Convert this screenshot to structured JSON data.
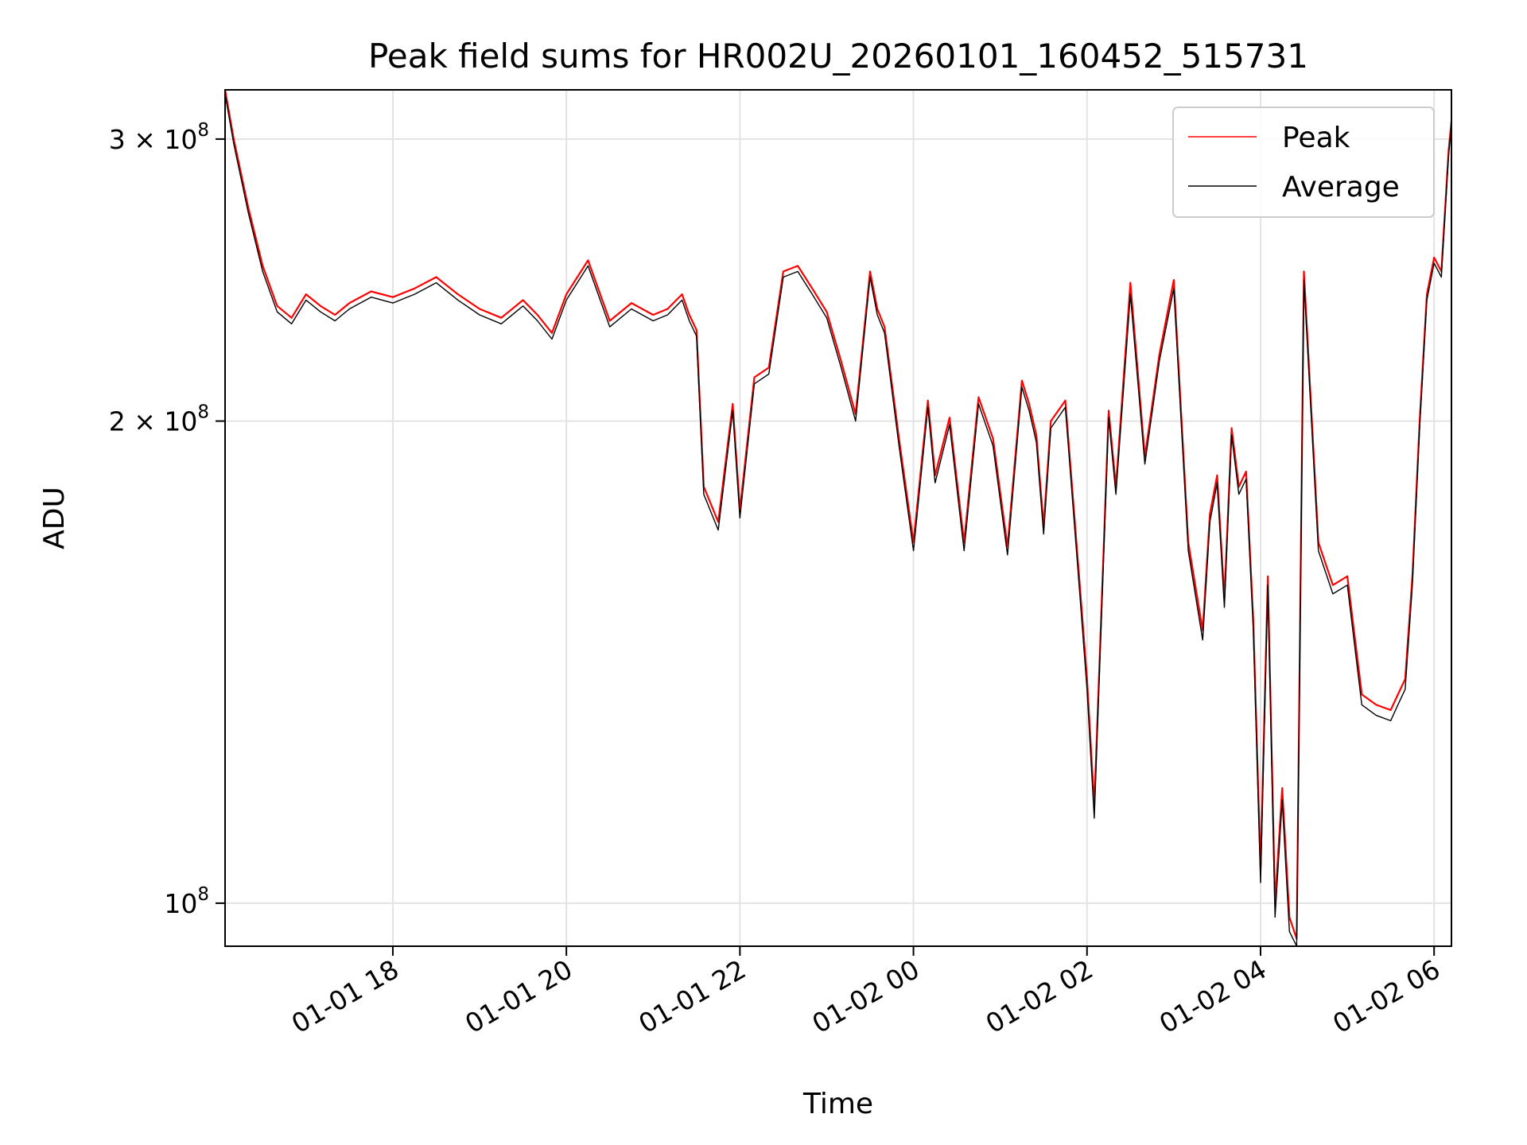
{
  "chart_data": {
    "type": "line",
    "title": "Peak field sums for HR002U_20260101_160452_515731",
    "xlabel": "Time",
    "ylabel": "ADU",
    "yscale": "log",
    "xlim": [
      "2026-01-01 16:04",
      "2026-01-02 06:12"
    ],
    "ylim": [
      94000000,
      322000000
    ],
    "grid": true,
    "legend_position": "upper right",
    "x_ticks": [
      {
        "value": "2026-01-01 18:00",
        "label": "01-01 18"
      },
      {
        "value": "2026-01-01 20:00",
        "label": "01-01 20"
      },
      {
        "value": "2026-01-01 22:00",
        "label": "01-01 22"
      },
      {
        "value": "2026-01-02 00:00",
        "label": "01-02 00"
      },
      {
        "value": "2026-01-02 02:00",
        "label": "01-02 02"
      },
      {
        "value": "2026-01-02 04:00",
        "label": "01-02 04"
      },
      {
        "value": "2026-01-02 06:00",
        "label": "01-02 06"
      }
    ],
    "y_ticks": [
      {
        "value": 100000000,
        "mantissa": "",
        "base": "10",
        "exp": "8"
      },
      {
        "value": 200000000,
        "mantissa": "2",
        "base": "10",
        "exp": "8"
      },
      {
        "value": 300000000,
        "mantissa": "3",
        "base": "10",
        "exp": "8"
      }
    ],
    "series": [
      {
        "name": "Peak",
        "color": "#ff0000",
        "x": [
          "2026-01-01 16:04",
          "2026-01-01 16:10",
          "2026-01-01 16:20",
          "2026-01-01 16:30",
          "2026-01-01 16:40",
          "2026-01-01 16:50",
          "2026-01-01 17:00",
          "2026-01-01 17:10",
          "2026-01-01 17:20",
          "2026-01-01 17:30",
          "2026-01-01 17:45",
          "2026-01-01 18:00",
          "2026-01-01 18:15",
          "2026-01-01 18:30",
          "2026-01-01 18:45",
          "2026-01-01 19:00",
          "2026-01-01 19:15",
          "2026-01-01 19:30",
          "2026-01-01 19:40",
          "2026-01-01 19:50",
          "2026-01-01 20:00",
          "2026-01-01 20:15",
          "2026-01-01 20:30",
          "2026-01-01 20:45",
          "2026-01-01 21:00",
          "2026-01-01 21:10",
          "2026-01-01 21:20",
          "2026-01-01 21:25",
          "2026-01-01 21:30",
          "2026-01-01 21:35",
          "2026-01-01 21:45",
          "2026-01-01 21:55",
          "2026-01-01 22:00",
          "2026-01-01 22:10",
          "2026-01-01 22:20",
          "2026-01-01 22:30",
          "2026-01-01 22:40",
          "2026-01-01 22:50",
          "2026-01-01 23:00",
          "2026-01-01 23:10",
          "2026-01-01 23:20",
          "2026-01-01 23:30",
          "2026-01-01 23:35",
          "2026-01-01 23:40",
          "2026-01-01 23:50",
          "2026-01-02 00:00",
          "2026-01-02 00:10",
          "2026-01-02 00:15",
          "2026-01-02 00:25",
          "2026-01-02 00:35",
          "2026-01-02 00:45",
          "2026-01-02 00:55",
          "2026-01-02 01:05",
          "2026-01-02 01:15",
          "2026-01-02 01:20",
          "2026-01-02 01:25",
          "2026-01-02 01:30",
          "2026-01-02 01:35",
          "2026-01-02 01:45",
          "2026-01-02 01:55",
          "2026-01-02 02:00",
          "2026-01-02 02:05",
          "2026-01-02 02:15",
          "2026-01-02 02:20",
          "2026-01-02 02:30",
          "2026-01-02 02:40",
          "2026-01-02 02:50",
          "2026-01-02 03:00",
          "2026-01-02 03:10",
          "2026-01-02 03:20",
          "2026-01-02 03:25",
          "2026-01-02 03:30",
          "2026-01-02 03:35",
          "2026-01-02 03:40",
          "2026-01-02 03:45",
          "2026-01-02 03:50",
          "2026-01-02 03:55",
          "2026-01-02 04:00",
          "2026-01-02 04:05",
          "2026-01-02 04:10",
          "2026-01-02 04:15",
          "2026-01-02 04:20",
          "2026-01-02 04:25",
          "2026-01-02 04:30",
          "2026-01-02 04:40",
          "2026-01-02 04:50",
          "2026-01-02 05:00",
          "2026-01-02 05:10",
          "2026-01-02 05:20",
          "2026-01-02 05:30",
          "2026-01-02 05:35",
          "2026-01-02 05:40",
          "2026-01-02 05:45",
          "2026-01-02 05:50",
          "2026-01-02 05:55",
          "2026-01-02 06:00",
          "2026-01-02 06:05",
          "2026-01-02 06:10",
          "2026-01-02 06:12"
        ],
        "y": [
          322000000,
          300000000,
          272000000,
          250000000,
          236000000,
          232000000,
          240000000,
          236000000,
          233000000,
          237000000,
          241000000,
          239000000,
          242000000,
          246000000,
          240000000,
          235000000,
          232000000,
          238000000,
          233000000,
          227000000,
          240000000,
          252000000,
          231000000,
          237000000,
          233000000,
          235000000,
          240000000,
          233000000,
          228000000,
          182000000,
          173000000,
          205000000,
          176000000,
          213000000,
          216000000,
          248000000,
          250000000,
          242000000,
          234000000,
          218000000,
          202000000,
          248000000,
          235000000,
          229000000,
          195000000,
          168000000,
          206000000,
          185000000,
          201000000,
          168000000,
          207000000,
          195000000,
          167000000,
          212000000,
          205000000,
          196000000,
          172000000,
          200000000,
          206000000,
          158000000,
          138000000,
          115000000,
          203000000,
          182000000,
          244000000,
          190000000,
          220000000,
          245000000,
          168000000,
          148000000,
          175000000,
          185000000,
          155000000,
          198000000,
          182000000,
          186000000,
          150000000,
          105000000,
          160000000,
          100000000,
          118000000,
          98000000,
          95000000,
          248000000,
          168000000,
          158000000,
          160000000,
          135000000,
          133000000,
          132000000,
          135000000,
          138000000,
          160000000,
          200000000,
          240000000,
          253000000,
          248000000,
          295000000,
          308000000
        ]
      },
      {
        "name": "Average",
        "color": "#000000",
        "x": [
          "2026-01-01 16:04",
          "2026-01-01 16:10",
          "2026-01-01 16:20",
          "2026-01-01 16:30",
          "2026-01-01 16:40",
          "2026-01-01 16:50",
          "2026-01-01 17:00",
          "2026-01-01 17:10",
          "2026-01-01 17:20",
          "2026-01-01 17:30",
          "2026-01-01 17:45",
          "2026-01-01 18:00",
          "2026-01-01 18:15",
          "2026-01-01 18:30",
          "2026-01-01 18:45",
          "2026-01-01 19:00",
          "2026-01-01 19:15",
          "2026-01-01 19:30",
          "2026-01-01 19:40",
          "2026-01-01 19:50",
          "2026-01-01 20:00",
          "2026-01-01 20:15",
          "2026-01-01 20:30",
          "2026-01-01 20:45",
          "2026-01-01 21:00",
          "2026-01-01 21:10",
          "2026-01-01 21:20",
          "2026-01-01 21:25",
          "2026-01-01 21:30",
          "2026-01-01 21:35",
          "2026-01-01 21:45",
          "2026-01-01 21:55",
          "2026-01-01 22:00",
          "2026-01-01 22:10",
          "2026-01-01 22:20",
          "2026-01-01 22:30",
          "2026-01-01 22:40",
          "2026-01-01 22:50",
          "2026-01-01 23:00",
          "2026-01-01 23:10",
          "2026-01-01 23:20",
          "2026-01-01 23:30",
          "2026-01-01 23:35",
          "2026-01-01 23:40",
          "2026-01-01 23:50",
          "2026-01-02 00:00",
          "2026-01-02 00:10",
          "2026-01-02 00:15",
          "2026-01-02 00:25",
          "2026-01-02 00:35",
          "2026-01-02 00:45",
          "2026-01-02 00:55",
          "2026-01-02 01:05",
          "2026-01-02 01:15",
          "2026-01-02 01:20",
          "2026-01-02 01:25",
          "2026-01-02 01:30",
          "2026-01-02 01:35",
          "2026-01-02 01:45",
          "2026-01-02 01:55",
          "2026-01-02 02:00",
          "2026-01-02 02:05",
          "2026-01-02 02:15",
          "2026-01-02 02:20",
          "2026-01-02 02:30",
          "2026-01-02 02:40",
          "2026-01-02 02:50",
          "2026-01-02 03:00",
          "2026-01-02 03:10",
          "2026-01-02 03:20",
          "2026-01-02 03:25",
          "2026-01-02 03:30",
          "2026-01-02 03:35",
          "2026-01-02 03:40",
          "2026-01-02 03:45",
          "2026-01-02 03:50",
          "2026-01-02 03:55",
          "2026-01-02 04:00",
          "2026-01-02 04:05",
          "2026-01-02 04:10",
          "2026-01-02 04:15",
          "2026-01-02 04:20",
          "2026-01-02 04:25",
          "2026-01-02 04:30",
          "2026-01-02 04:40",
          "2026-01-02 04:50",
          "2026-01-02 05:00",
          "2026-01-02 05:10",
          "2026-01-02 05:20",
          "2026-01-02 05:30",
          "2026-01-02 05:35",
          "2026-01-02 05:40",
          "2026-01-02 05:45",
          "2026-01-02 05:50",
          "2026-01-02 05:55",
          "2026-01-02 06:00",
          "2026-01-02 06:05",
          "2026-01-02 06:10",
          "2026-01-02 06:12"
        ],
        "y": [
          320000000,
          298000000,
          270000000,
          248000000,
          234000000,
          230000000,
          238000000,
          234000000,
          231000000,
          235000000,
          239000000,
          237000000,
          240000000,
          244000000,
          238000000,
          233000000,
          230000000,
          236000000,
          231000000,
          225000000,
          238000000,
          250000000,
          229000000,
          235000000,
          231000000,
          233000000,
          238000000,
          231000000,
          226000000,
          180000000,
          171000000,
          203000000,
          174000000,
          211000000,
          214000000,
          246000000,
          248000000,
          240000000,
          232000000,
          216000000,
          200000000,
          246000000,
          233000000,
          227000000,
          193000000,
          166000000,
          204000000,
          183000000,
          199000000,
          166000000,
          205000000,
          193000000,
          165000000,
          210000000,
          203000000,
          194000000,
          170000000,
          198000000,
          204000000,
          156000000,
          136000000,
          113000000,
          201000000,
          180000000,
          240000000,
          188000000,
          218000000,
          242000000,
          166000000,
          146000000,
          173000000,
          183000000,
          153000000,
          196000000,
          180000000,
          184000000,
          148000000,
          103000000,
          158000000,
          98000000,
          116000000,
          96000000,
          94000000,
          245000000,
          166000000,
          156000000,
          158000000,
          133000000,
          131000000,
          130000000,
          133000000,
          136000000,
          158000000,
          198000000,
          238000000,
          251000000,
          246000000,
          293000000,
          306000000
        ]
      }
    ]
  }
}
